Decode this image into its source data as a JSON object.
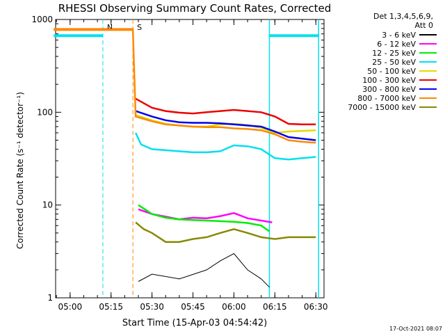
{
  "chart_data": {
    "type": "line",
    "title": "RHESSI Observing Summary Count Rates, Corrected",
    "xlabel": "Start Time (15-Apr-03 04:54:42)",
    "ylabel": "Corrected Count Rate (s⁻¹ detector⁻¹)",
    "footer": "17-Oct-2021 08:07",
    "y_scale": "log",
    "ylim": [
      1,
      1000
    ],
    "xlim": [
      "04:54:42",
      "06:33:00"
    ],
    "x_ticks": [
      "05:00",
      "05:15",
      "05:30",
      "05:45",
      "06:00",
      "06:15",
      "06:30"
    ],
    "y_ticks": [
      "1",
      "10",
      "100",
      "1000"
    ],
    "legend": {
      "placement": "right",
      "header1": "Det 1,3,4,5,6,9,",
      "header2": "Att 0"
    },
    "series": [
      {
        "name": "3 - 6 keV",
        "color": "#000000",
        "x": [
          "05:25",
          "05:30",
          "05:40",
          "05:50",
          "05:55",
          "06:00",
          "06:05",
          "06:10",
          "06:13"
        ],
        "y": [
          1.5,
          1.8,
          1.6,
          2.0,
          2.5,
          3.0,
          2.0,
          1.6,
          1.3
        ]
      },
      {
        "name": "6 - 12 keV",
        "color": "#ff00ff",
        "x": [
          "05:25",
          "05:30",
          "05:35",
          "05:40",
          "05:45",
          "05:50",
          "05:55",
          "06:00",
          "06:05",
          "06:10",
          "06:14"
        ],
        "y": [
          9.0,
          8.0,
          7.5,
          7.0,
          7.3,
          7.2,
          7.6,
          8.2,
          7.2,
          6.8,
          6.5
        ]
      },
      {
        "name": "12 - 25 keV",
        "color": "#00ee00",
        "x": [
          "05:25",
          "05:30",
          "05:35",
          "05:40",
          "05:45",
          "05:50",
          "05:55",
          "06:00",
          "06:05",
          "06:10",
          "06:13"
        ],
        "y": [
          10.0,
          8.0,
          7.3,
          7.0,
          6.9,
          6.8,
          6.7,
          6.6,
          6.4,
          6.0,
          5.2
        ]
      },
      {
        "name": "25 - 50 keV",
        "color": "#00e0ee",
        "x": [
          "05:24",
          "05:26",
          "05:30",
          "05:35",
          "05:40",
          "05:45",
          "05:50",
          "05:55",
          "06:00",
          "06:05",
          "06:10",
          "06:15",
          "06:20",
          "06:25",
          "06:30"
        ],
        "y": [
          60,
          45,
          40,
          39,
          38,
          37,
          37,
          38,
          44,
          43,
          40,
          32,
          31,
          32,
          33
        ]
      },
      {
        "name": "50 - 100 keV",
        "color": "#dddd00",
        "x": [
          "05:24",
          "05:30",
          "05:35",
          "05:40",
          "05:45",
          "05:50",
          "05:55",
          "06:00",
          "06:05",
          "06:10",
          "06:15",
          "06:20",
          "06:25",
          "06:30"
        ],
        "y": [
          93,
          82,
          75,
          72,
          70,
          70,
          74,
          75,
          73,
          68,
          60,
          62,
          63,
          64
        ]
      },
      {
        "name": "100 - 300 keV",
        "color": "#ee0000",
        "x": [
          "05:24",
          "05:30",
          "05:35",
          "05:40",
          "05:45",
          "05:50",
          "05:55",
          "06:00",
          "06:05",
          "06:10",
          "06:15",
          "06:20",
          "06:25",
          "06:30"
        ],
        "y": [
          140,
          112,
          103,
          99,
          97,
          100,
          103,
          106,
          103,
          100,
          90,
          75,
          74,
          74
        ]
      },
      {
        "name": "300 - 800 keV",
        "color": "#0000ee",
        "x": [
          "05:24",
          "05:30",
          "05:35",
          "05:40",
          "05:45",
          "05:50",
          "05:55",
          "06:00",
          "06:05",
          "06:10",
          "06:15",
          "06:20",
          "06:25",
          "06:30"
        ],
        "y": [
          103,
          90,
          82,
          78,
          77,
          77,
          76,
          74,
          72,
          70,
          62,
          54,
          52,
          50
        ]
      },
      {
        "name": "800 - 7000 keV",
        "color": "#ff8800",
        "x": [
          "04:54",
          "05:23",
          "05:24",
          "05:30",
          "05:35",
          "05:40",
          "05:45",
          "05:50",
          "05:55",
          "06:00",
          "06:05",
          "06:10",
          "06:15",
          "06:20",
          "06:25",
          "06:30"
        ],
        "y": [
          780,
          780,
          90,
          80,
          74,
          72,
          70,
          69,
          69,
          67,
          66,
          64,
          58,
          50,
          48,
          47
        ]
      },
      {
        "name": "7000 - 15000 keV",
        "color": "#888800",
        "x": [
          "05:24",
          "05:27",
          "05:30",
          "05:35",
          "05:40",
          "05:45",
          "05:50",
          "05:55",
          "06:00",
          "06:05",
          "06:10",
          "06:15",
          "06:20",
          "06:25",
          "06:30"
        ],
        "y": [
          6.5,
          5.5,
          5.0,
          4.0,
          4.0,
          4.3,
          4.5,
          5.0,
          5.5,
          5.0,
          4.5,
          4.3,
          4.5,
          4.5,
          4.5
        ]
      }
    ],
    "annotations": [
      {
        "label": "S",
        "color": "#ff8800",
        "x": "05:23",
        "bar": {
          "x": [
            "04:54",
            "05:23"
          ],
          "y": 780
        }
      },
      {
        "label": "N",
        "color": "#00e0ee",
        "x": "05:12",
        "bar": {
          "x": [
            "04:54",
            "05:12"
          ],
          "y": 670
        }
      },
      {
        "label": "",
        "color": "#00e0ee",
        "x": "06:31",
        "bar": {
          "x": [
            "06:13",
            "06:31"
          ],
          "y": 670
        }
      }
    ],
    "solid_lines": [
      {
        "x": "06:13",
        "color": "#00e0ee"
      },
      {
        "x": "06:31",
        "color": "#00e0ee"
      }
    ]
  }
}
